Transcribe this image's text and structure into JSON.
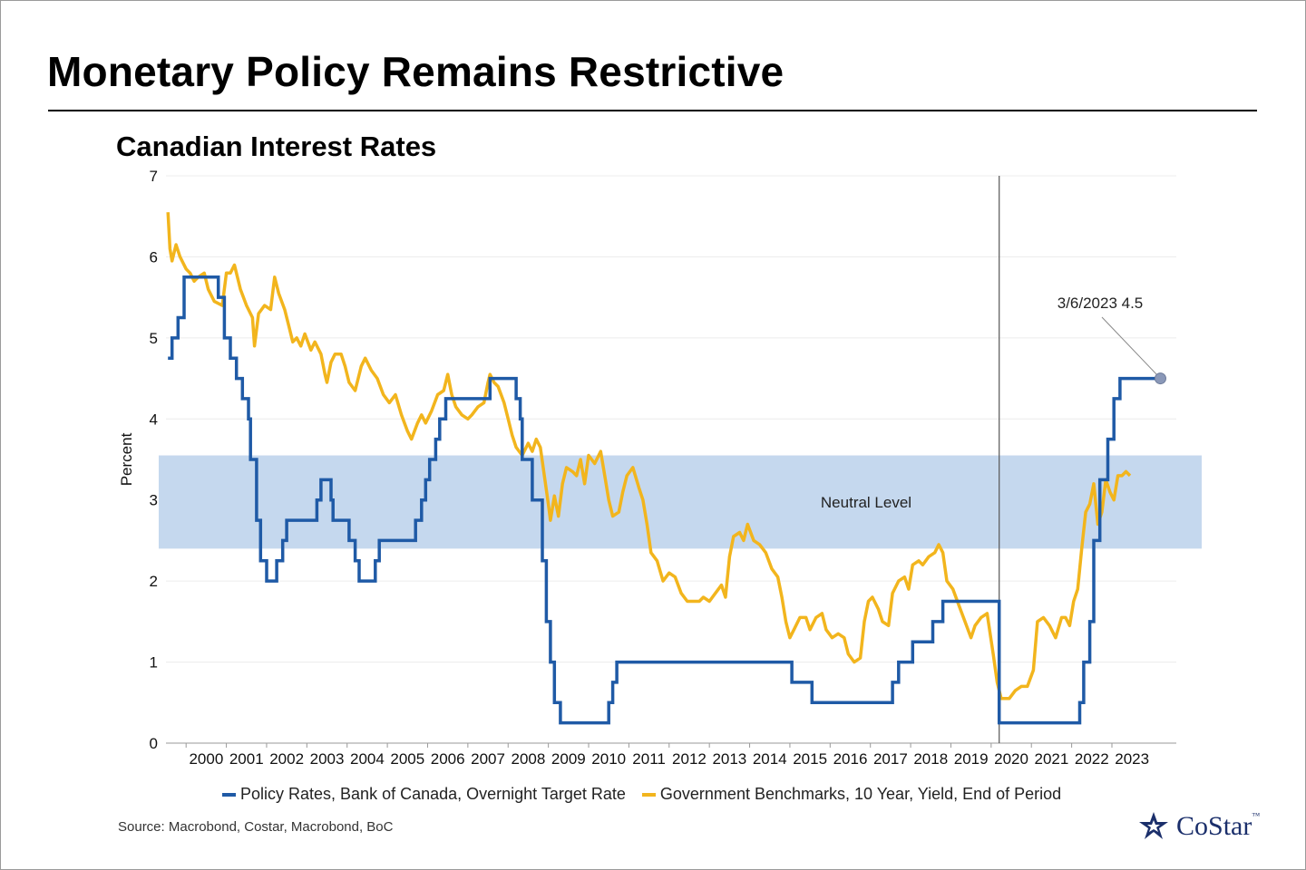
{
  "title": "Monetary Policy Remains Restrictive",
  "subtitle": "Canadian Interest Rates",
  "source": "Source: Macrobond, Costar, Macrobond, BoC",
  "logo": {
    "text": "CoStar",
    "tm": "™"
  },
  "colors": {
    "policy": "#1f5aa6",
    "bond": "#f2b51d",
    "band": "#c5d8ee",
    "marker": "#8a98b8"
  },
  "legend": {
    "policy": "Policy Rates, Bank of Canada, Overnight Target Rate",
    "bond": "Government Benchmarks, 10 Year, Yield, End of Period"
  },
  "chart_data": {
    "type": "line",
    "ylabel": "Percent",
    "ylim": [
      0,
      7
    ],
    "yticks": [
      "0",
      "1",
      "2",
      "3",
      "4",
      "5",
      "6",
      "7"
    ],
    "xlim": [
      1999.5,
      2024.6
    ],
    "xticks": [
      "2000",
      "2001",
      "2002",
      "2003",
      "2004",
      "2005",
      "2006",
      "2007",
      "2008",
      "2009",
      "2010",
      "2011",
      "2012",
      "2013",
      "2014",
      "2015",
      "2016",
      "2017",
      "2018",
      "2019",
      "2020",
      "2021",
      "2022",
      "2023"
    ],
    "band": {
      "from": 2.4,
      "to": 3.55,
      "label": "Neutral Level"
    },
    "vline_x": 2020.2,
    "annotation": {
      "text": "3/6/2023 4.5",
      "x": 2024.25,
      "y": 4.5
    },
    "series": [
      {
        "name": "Policy Rates, Bank of Canada, Overnight Target Rate",
        "step": true,
        "points": [
          [
            1999.55,
            4.75
          ],
          [
            1999.65,
            5.0
          ],
          [
            1999.8,
            5.25
          ],
          [
            1999.95,
            5.75
          ],
          [
            2000.8,
            5.5
          ],
          [
            2000.95,
            5.0
          ],
          [
            2001.1,
            4.75
          ],
          [
            2001.25,
            4.5
          ],
          [
            2001.4,
            4.25
          ],
          [
            2001.55,
            4.0
          ],
          [
            2001.6,
            3.5
          ],
          [
            2001.75,
            2.75
          ],
          [
            2001.85,
            2.25
          ],
          [
            2002.0,
            2.0
          ],
          [
            2002.25,
            2.25
          ],
          [
            2002.4,
            2.5
          ],
          [
            2002.5,
            2.75
          ],
          [
            2003.25,
            3.0
          ],
          [
            2003.35,
            3.25
          ],
          [
            2003.6,
            3.0
          ],
          [
            2003.65,
            2.75
          ],
          [
            2004.05,
            2.5
          ],
          [
            2004.2,
            2.25
          ],
          [
            2004.3,
            2.0
          ],
          [
            2004.7,
            2.25
          ],
          [
            2004.8,
            2.5
          ],
          [
            2005.7,
            2.75
          ],
          [
            2005.85,
            3.0
          ],
          [
            2005.95,
            3.25
          ],
          [
            2006.05,
            3.5
          ],
          [
            2006.2,
            3.75
          ],
          [
            2006.3,
            4.0
          ],
          [
            2006.45,
            4.25
          ],
          [
            2007.55,
            4.5
          ],
          [
            2008.2,
            4.25
          ],
          [
            2008.3,
            4.0
          ],
          [
            2008.35,
            3.5
          ],
          [
            2008.6,
            3.0
          ],
          [
            2008.85,
            2.25
          ],
          [
            2008.95,
            1.5
          ],
          [
            2009.05,
            1.0
          ],
          [
            2009.15,
            0.5
          ],
          [
            2009.3,
            0.25
          ],
          [
            2010.5,
            0.5
          ],
          [
            2010.6,
            0.75
          ],
          [
            2010.7,
            1.0
          ],
          [
            2015.05,
            0.75
          ],
          [
            2015.55,
            0.5
          ],
          [
            2017.55,
            0.75
          ],
          [
            2017.7,
            1.0
          ],
          [
            2018.05,
            1.25
          ],
          [
            2018.55,
            1.5
          ],
          [
            2018.8,
            1.75
          ],
          [
            2020.2,
            0.25
          ],
          [
            2022.2,
            0.5
          ],
          [
            2022.3,
            1.0
          ],
          [
            2022.45,
            1.5
          ],
          [
            2022.55,
            2.5
          ],
          [
            2022.7,
            3.25
          ],
          [
            2022.9,
            3.75
          ],
          [
            2023.05,
            4.25
          ],
          [
            2023.2,
            4.5
          ],
          [
            2024.25,
            4.5
          ]
        ]
      },
      {
        "name": "Government Benchmarks, 10 Year, Yield, End of Period",
        "step": false,
        "points": [
          [
            1999.55,
            6.55
          ],
          [
            1999.6,
            6.1
          ],
          [
            1999.65,
            5.95
          ],
          [
            1999.75,
            6.15
          ],
          [
            1999.85,
            6.0
          ],
          [
            2000.0,
            5.85
          ],
          [
            2000.1,
            5.8
          ],
          [
            2000.2,
            5.7
          ],
          [
            2000.3,
            5.75
          ],
          [
            2000.45,
            5.8
          ],
          [
            2000.55,
            5.6
          ],
          [
            2000.7,
            5.45
          ],
          [
            2000.9,
            5.4
          ],
          [
            2001.0,
            5.8
          ],
          [
            2001.1,
            5.8
          ],
          [
            2001.2,
            5.9
          ],
          [
            2001.35,
            5.6
          ],
          [
            2001.5,
            5.4
          ],
          [
            2001.65,
            5.25
          ],
          [
            2001.7,
            4.9
          ],
          [
            2001.8,
            5.3
          ],
          [
            2001.95,
            5.4
          ],
          [
            2002.1,
            5.35
          ],
          [
            2002.2,
            5.75
          ],
          [
            2002.3,
            5.55
          ],
          [
            2002.45,
            5.35
          ],
          [
            2002.55,
            5.15
          ],
          [
            2002.65,
            4.95
          ],
          [
            2002.75,
            5.0
          ],
          [
            2002.85,
            4.9
          ],
          [
            2002.95,
            5.05
          ],
          [
            2003.1,
            4.85
          ],
          [
            2003.2,
            4.95
          ],
          [
            2003.35,
            4.8
          ],
          [
            2003.45,
            4.55
          ],
          [
            2003.5,
            4.45
          ],
          [
            2003.6,
            4.7
          ],
          [
            2003.7,
            4.8
          ],
          [
            2003.85,
            4.8
          ],
          [
            2003.95,
            4.65
          ],
          [
            2004.05,
            4.45
          ],
          [
            2004.2,
            4.35
          ],
          [
            2004.35,
            4.65
          ],
          [
            2004.45,
            4.75
          ],
          [
            2004.6,
            4.6
          ],
          [
            2004.75,
            4.5
          ],
          [
            2004.9,
            4.3
          ],
          [
            2005.05,
            4.2
          ],
          [
            2005.2,
            4.3
          ],
          [
            2005.35,
            4.05
          ],
          [
            2005.5,
            3.85
          ],
          [
            2005.6,
            3.75
          ],
          [
            2005.75,
            3.95
          ],
          [
            2005.85,
            4.05
          ],
          [
            2005.95,
            3.95
          ],
          [
            2006.1,
            4.1
          ],
          [
            2006.25,
            4.3
          ],
          [
            2006.4,
            4.35
          ],
          [
            2006.5,
            4.55
          ],
          [
            2006.6,
            4.3
          ],
          [
            2006.7,
            4.15
          ],
          [
            2006.85,
            4.05
          ],
          [
            2007.0,
            4.0
          ],
          [
            2007.1,
            4.05
          ],
          [
            2007.25,
            4.15
          ],
          [
            2007.4,
            4.2
          ],
          [
            2007.5,
            4.45
          ],
          [
            2007.55,
            4.55
          ],
          [
            2007.65,
            4.45
          ],
          [
            2007.75,
            4.4
          ],
          [
            2007.9,
            4.2
          ],
          [
            2008.0,
            4.0
          ],
          [
            2008.1,
            3.8
          ],
          [
            2008.2,
            3.65
          ],
          [
            2008.35,
            3.55
          ],
          [
            2008.5,
            3.7
          ],
          [
            2008.6,
            3.6
          ],
          [
            2008.7,
            3.75
          ],
          [
            2008.8,
            3.65
          ],
          [
            2008.9,
            3.3
          ],
          [
            2009.0,
            2.95
          ],
          [
            2009.05,
            2.75
          ],
          [
            2009.15,
            3.05
          ],
          [
            2009.25,
            2.8
          ],
          [
            2009.35,
            3.2
          ],
          [
            2009.45,
            3.4
          ],
          [
            2009.6,
            3.35
          ],
          [
            2009.7,
            3.3
          ],
          [
            2009.8,
            3.5
          ],
          [
            2009.9,
            3.2
          ],
          [
            2010.0,
            3.55
          ],
          [
            2010.15,
            3.45
          ],
          [
            2010.3,
            3.6
          ],
          [
            2010.4,
            3.3
          ],
          [
            2010.5,
            3.0
          ],
          [
            2010.6,
            2.8
          ],
          [
            2010.75,
            2.85
          ],
          [
            2010.85,
            3.1
          ],
          [
            2010.95,
            3.3
          ],
          [
            2011.1,
            3.4
          ],
          [
            2011.25,
            3.15
          ],
          [
            2011.35,
            3.0
          ],
          [
            2011.45,
            2.7
          ],
          [
            2011.55,
            2.35
          ],
          [
            2011.7,
            2.25
          ],
          [
            2011.85,
            2.0
          ],
          [
            2012.0,
            2.1
          ],
          [
            2012.15,
            2.05
          ],
          [
            2012.3,
            1.85
          ],
          [
            2012.45,
            1.75
          ],
          [
            2012.6,
            1.75
          ],
          [
            2012.75,
            1.75
          ],
          [
            2012.85,
            1.8
          ],
          [
            2013.0,
            1.75
          ],
          [
            2013.15,
            1.85
          ],
          [
            2013.3,
            1.95
          ],
          [
            2013.4,
            1.8
          ],
          [
            2013.5,
            2.3
          ],
          [
            2013.6,
            2.55
          ],
          [
            2013.75,
            2.6
          ],
          [
            2013.85,
            2.5
          ],
          [
            2013.95,
            2.7
          ],
          [
            2014.1,
            2.5
          ],
          [
            2014.25,
            2.45
          ],
          [
            2014.4,
            2.35
          ],
          [
            2014.55,
            2.15
          ],
          [
            2014.7,
            2.05
          ],
          [
            2014.8,
            1.8
          ],
          [
            2014.9,
            1.5
          ],
          [
            2015.0,
            1.3
          ],
          [
            2015.1,
            1.4
          ],
          [
            2015.25,
            1.55
          ],
          [
            2015.4,
            1.55
          ],
          [
            2015.5,
            1.4
          ],
          [
            2015.65,
            1.55
          ],
          [
            2015.8,
            1.6
          ],
          [
            2015.9,
            1.4
          ],
          [
            2016.05,
            1.3
          ],
          [
            2016.2,
            1.35
          ],
          [
            2016.35,
            1.3
          ],
          [
            2016.45,
            1.1
          ],
          [
            2016.6,
            1.0
          ],
          [
            2016.75,
            1.05
          ],
          [
            2016.85,
            1.5
          ],
          [
            2016.95,
            1.75
          ],
          [
            2017.05,
            1.8
          ],
          [
            2017.2,
            1.65
          ],
          [
            2017.3,
            1.5
          ],
          [
            2017.45,
            1.45
          ],
          [
            2017.55,
            1.85
          ],
          [
            2017.7,
            2.0
          ],
          [
            2017.85,
            2.05
          ],
          [
            2017.95,
            1.9
          ],
          [
            2018.05,
            2.2
          ],
          [
            2018.2,
            2.25
          ],
          [
            2018.3,
            2.2
          ],
          [
            2018.45,
            2.3
          ],
          [
            2018.6,
            2.35
          ],
          [
            2018.7,
            2.45
          ],
          [
            2018.8,
            2.35
          ],
          [
            2018.9,
            2.0
          ],
          [
            2019.05,
            1.9
          ],
          [
            2019.2,
            1.7
          ],
          [
            2019.35,
            1.5
          ],
          [
            2019.5,
            1.3
          ],
          [
            2019.6,
            1.45
          ],
          [
            2019.75,
            1.55
          ],
          [
            2019.9,
            1.6
          ],
          [
            2020.05,
            1.1
          ],
          [
            2020.15,
            0.75
          ],
          [
            2020.25,
            0.55
          ],
          [
            2020.45,
            0.55
          ],
          [
            2020.6,
            0.65
          ],
          [
            2020.75,
            0.7
          ],
          [
            2020.9,
            0.7
          ],
          [
            2021.05,
            0.9
          ],
          [
            2021.15,
            1.5
          ],
          [
            2021.3,
            1.55
          ],
          [
            2021.45,
            1.45
          ],
          [
            2021.6,
            1.3
          ],
          [
            2021.75,
            1.55
          ],
          [
            2021.85,
            1.55
          ],
          [
            2021.95,
            1.45
          ],
          [
            2022.05,
            1.75
          ],
          [
            2022.15,
            1.9
          ],
          [
            2022.25,
            2.4
          ],
          [
            2022.35,
            2.85
          ],
          [
            2022.45,
            2.95
          ],
          [
            2022.55,
            3.2
          ],
          [
            2022.65,
            2.7
          ],
          [
            2022.75,
            2.85
          ],
          [
            2022.85,
            3.25
          ],
          [
            2022.95,
            3.1
          ],
          [
            2023.05,
            3.0
          ],
          [
            2023.15,
            3.3
          ],
          [
            2023.25,
            3.3
          ],
          [
            2023.35,
            3.35
          ],
          [
            2023.45,
            3.3
          ]
        ]
      }
    ]
  }
}
